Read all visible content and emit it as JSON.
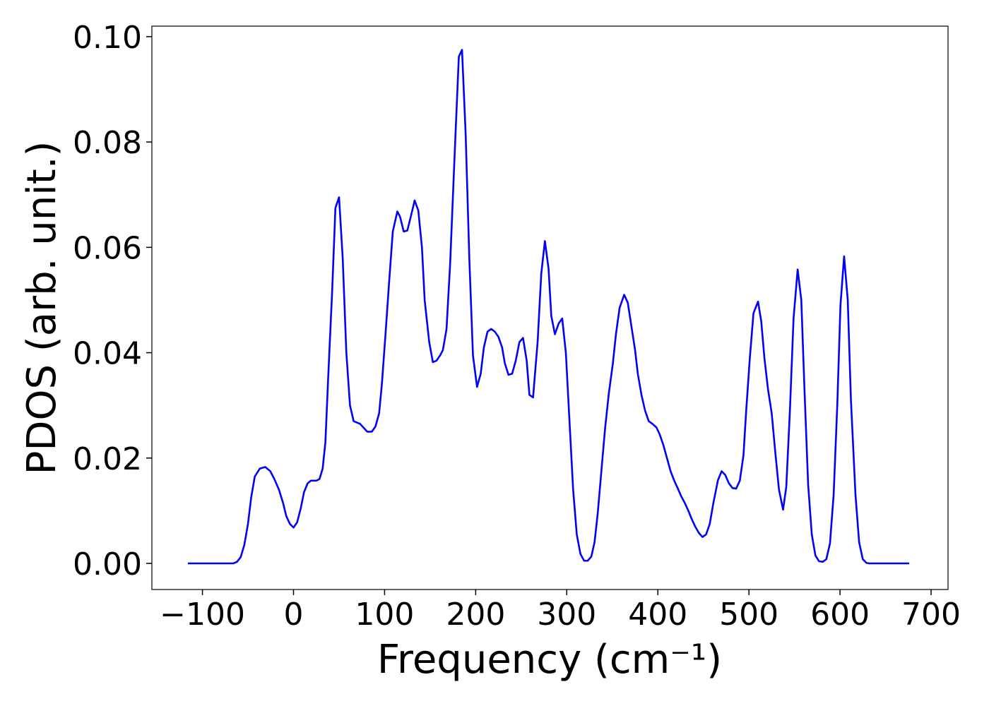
{
  "chart_data": {
    "type": "line",
    "xlabel": "Frequency (cm⁻¹)",
    "ylabel": "PDOS (arb. unit.)",
    "xlim": [
      -155.5,
      718.6
    ],
    "ylim": [
      -0.00496,
      0.102
    ],
    "xticks": [
      {
        "value": -100,
        "label": "−100"
      },
      0,
      100,
      200,
      300,
      400,
      500,
      600,
      700
    ],
    "yticks": [
      {
        "value": 0,
        "label": "0.00"
      },
      {
        "value": 0.02,
        "label": "0.02"
      },
      {
        "value": 0.04,
        "label": "0.04"
      },
      {
        "value": 0.06,
        "label": "0.06"
      },
      {
        "value": 0.08,
        "label": "0.08"
      },
      {
        "value": 0.1,
        "label": "0.10"
      }
    ],
    "series": [
      {
        "color": "#0000ff",
        "x": [
          -116,
          -66,
          -62,
          -58,
          -54,
          -50,
          -46.5,
          -42.5,
          -37,
          -31,
          -25.5,
          -21,
          -16,
          -11.5,
          -8,
          -4,
          0,
          4,
          8,
          11.5,
          15.5,
          19,
          25,
          28.5,
          32,
          35,
          38,
          42.5,
          46,
          50,
          54,
          58,
          62,
          66,
          73,
          81,
          86,
          90,
          94,
          97,
          101,
          105,
          109,
          114,
          117,
          121,
          125,
          129,
          133,
          137,
          141,
          144,
          149,
          153,
          157,
          161,
          164,
          168,
          172,
          177,
          181.5,
          185,
          189,
          193,
          197,
          201.5,
          205.5,
          209,
          213,
          217,
          221,
          225,
          229,
          232,
          236,
          240,
          244,
          248,
          252,
          256,
          259,
          263,
          268,
          272,
          276,
          280,
          283,
          287,
          291,
          295,
          299,
          303,
          307,
          311,
          315,
          319,
          323,
          327,
          330.5,
          334,
          338,
          342,
          346,
          350.5,
          354,
          358,
          363,
          367,
          371,
          375,
          378,
          382,
          386,
          390,
          394,
          398.5,
          402,
          406,
          410,
          414,
          418,
          422,
          425.5,
          429.5,
          433.5,
          437,
          441,
          445,
          449,
          453,
          457,
          461,
          466,
          470,
          474,
          478,
          482,
          486,
          490,
          494,
          497,
          501,
          505,
          510,
          513.5,
          517,
          521,
          525,
          529,
          533,
          537.5,
          541,
          545,
          549,
          553.5,
          557.5,
          561,
          565,
          569,
          573,
          577,
          581,
          585,
          589,
          593,
          597,
          600.5,
          604.5,
          608.5,
          612,
          617,
          621,
          625,
          629,
          632,
          676
        ],
        "values": [
          0,
          0,
          0.0003,
          0.0012,
          0.0035,
          0.0075,
          0.0125,
          0.0165,
          0.018,
          0.0183,
          0.0175,
          0.016,
          0.014,
          0.0115,
          0.009,
          0.0075,
          0.0068,
          0.0078,
          0.0105,
          0.0135,
          0.0152,
          0.0157,
          0.0157,
          0.016,
          0.018,
          0.023,
          0.035,
          0.052,
          0.0675,
          0.0695,
          0.058,
          0.04,
          0.03,
          0.027,
          0.0265,
          0.025,
          0.025,
          0.026,
          0.0285,
          0.034,
          0.0435,
          0.0535,
          0.063,
          0.0668,
          0.0658,
          0.063,
          0.0632,
          0.066,
          0.0689,
          0.067,
          0.06,
          0.05,
          0.042,
          0.0382,
          0.0385,
          0.0395,
          0.0405,
          0.0445,
          0.057,
          0.078,
          0.0962,
          0.0975,
          0.0815,
          0.058,
          0.0395,
          0.0335,
          0.036,
          0.041,
          0.044,
          0.0445,
          0.044,
          0.043,
          0.041,
          0.038,
          0.0358,
          0.036,
          0.0385,
          0.042,
          0.0428,
          0.0385,
          0.032,
          0.0315,
          0.042,
          0.055,
          0.0612,
          0.056,
          0.047,
          0.0435,
          0.0455,
          0.0465,
          0.04,
          0.027,
          0.014,
          0.0055,
          0.0018,
          0.0005,
          0.0005,
          0.0013,
          0.004,
          0.0095,
          0.0175,
          0.0255,
          0.032,
          0.0378,
          0.0435,
          0.0485,
          0.051,
          0.0495,
          0.045,
          0.0405,
          0.036,
          0.032,
          0.029,
          0.027,
          0.0265,
          0.0258,
          0.0245,
          0.0225,
          0.02,
          0.0175,
          0.0157,
          0.0142,
          0.0128,
          0.0115,
          0.01,
          0.0085,
          0.007,
          0.0058,
          0.005,
          0.0055,
          0.0075,
          0.0115,
          0.0158,
          0.0175,
          0.0168,
          0.0152,
          0.0143,
          0.0142,
          0.0157,
          0.0205,
          0.029,
          0.039,
          0.0475,
          0.0497,
          0.046,
          0.039,
          0.033,
          0.0285,
          0.021,
          0.014,
          0.0102,
          0.0145,
          0.029,
          0.0465,
          0.0558,
          0.05,
          0.033,
          0.015,
          0.0055,
          0.0015,
          0.0004,
          0.0003,
          0.0008,
          0.0038,
          0.013,
          0.03,
          0.049,
          0.0583,
          0.05,
          0.031,
          0.013,
          0.004,
          0.0008,
          0.0001,
          0,
          0
        ]
      }
    ]
  }
}
